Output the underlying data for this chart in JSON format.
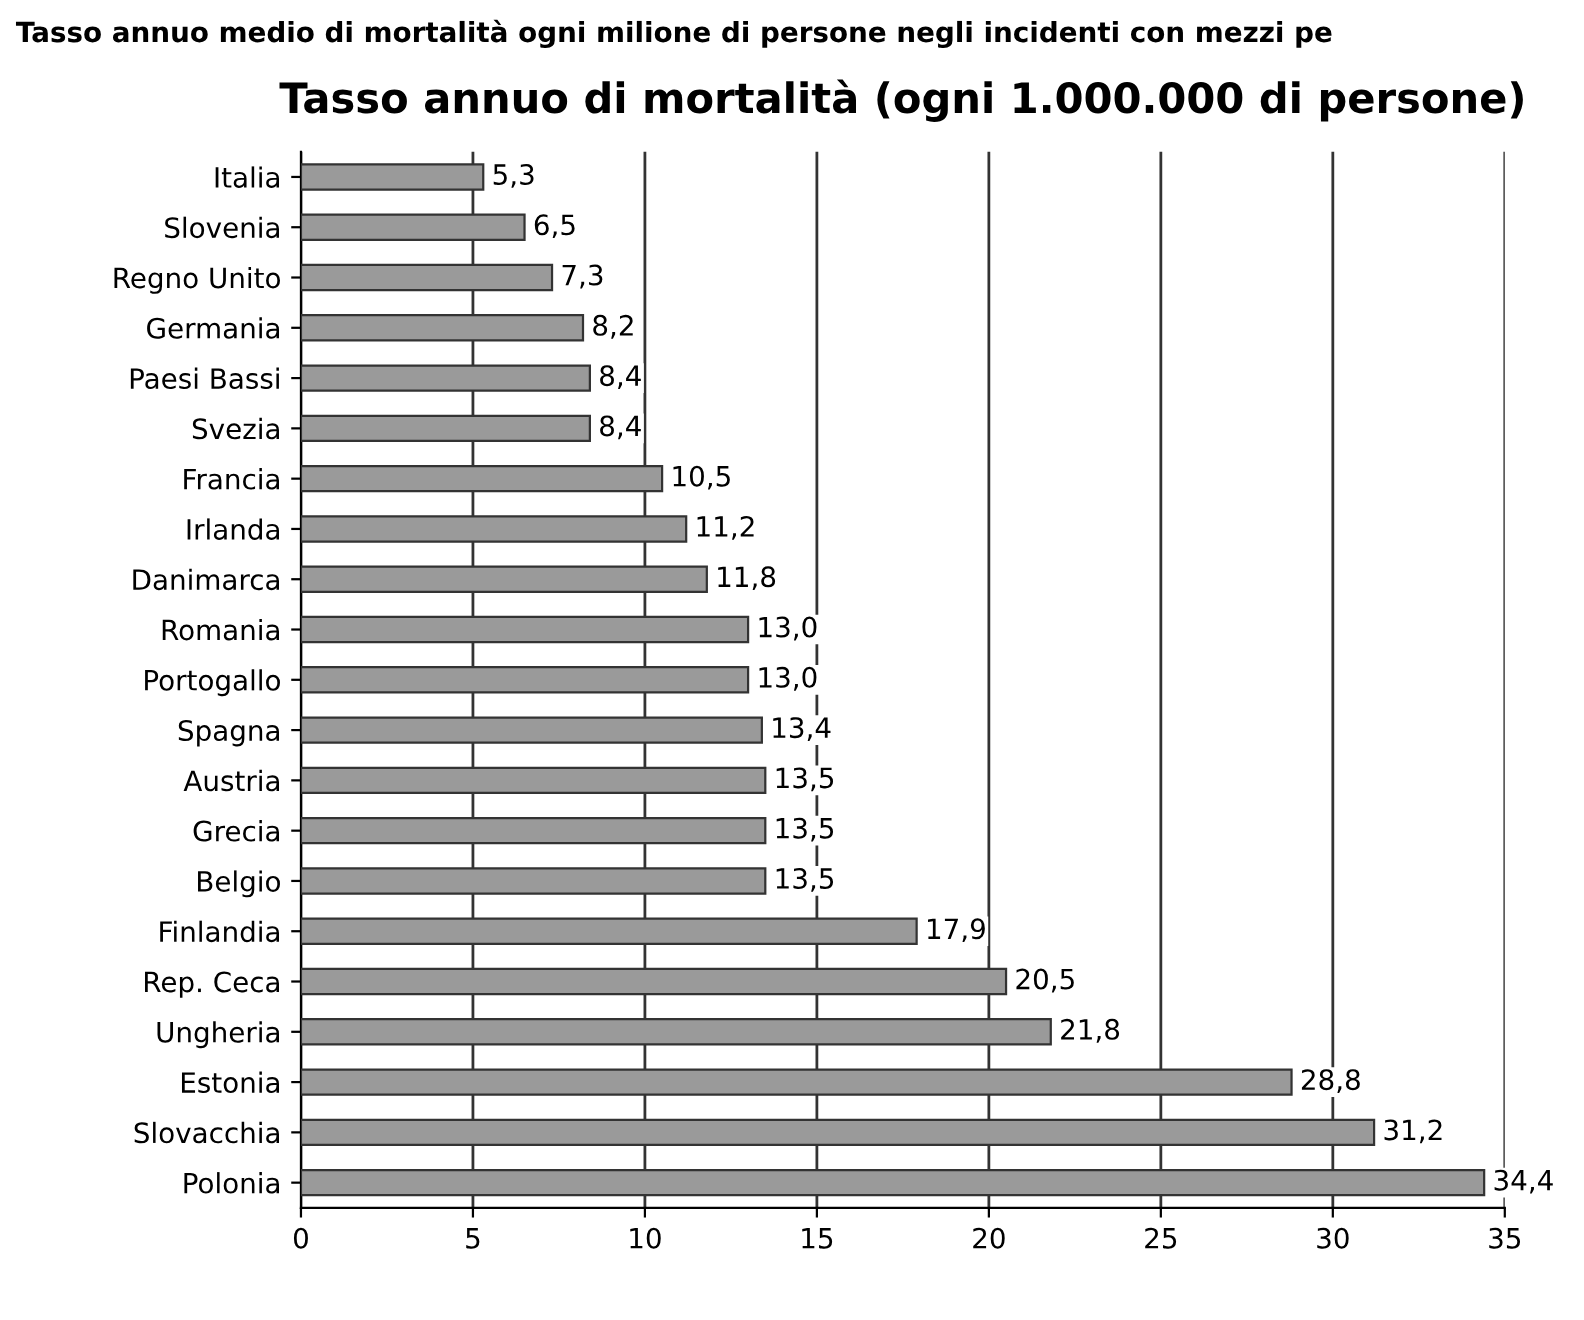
{
  "chart_data": {
    "type": "bar",
    "orientation": "horizontal",
    "title": "Tasso annuo di mortalità (ogni 1.000.000 di persone)",
    "annotations": [
      "Tasso annuo medio di mortalità ogni milione di persone negli incidenti con mezzi pe"
    ],
    "categories": [
      "Italia",
      "Slovenia",
      "Regno Unito",
      "Germania",
      "Paesi Bassi",
      "Svezia",
      "Francia",
      "Irlanda",
      "Danimarca",
      "Romania",
      "Portogallo",
      "Spagna",
      "Austria",
      "Grecia",
      "Belgio",
      "Finlandia",
      "Rep. Ceca",
      "Ungheria",
      "Estonia",
      "Slovacchia",
      "Polonia"
    ],
    "values": [
      5.3,
      6.5,
      7.3,
      8.2,
      8.4,
      8.4,
      10.5,
      11.2,
      11.8,
      13.0,
      13.0,
      13.4,
      13.5,
      13.5,
      13.5,
      17.9,
      20.5,
      21.8,
      28.8,
      31.2,
      34.4
    ],
    "value_labels": [
      "5,3",
      "6,5",
      "7,3",
      "8,2",
      "8,4",
      "8,4",
      "10,5",
      "11,2",
      "11,8",
      "13,0",
      "13,0",
      "13,4",
      "13,5",
      "13,5",
      "13,5",
      "17,9",
      "20,5",
      "21,8",
      "28,8",
      "31,2",
      "34,4"
    ],
    "color": "#9a9a9a",
    "xlim": [
      0,
      35
    ],
    "xticks": [
      0,
      5,
      10,
      15,
      20,
      25,
      30,
      35
    ],
    "grid": "x",
    "legend": false
  }
}
